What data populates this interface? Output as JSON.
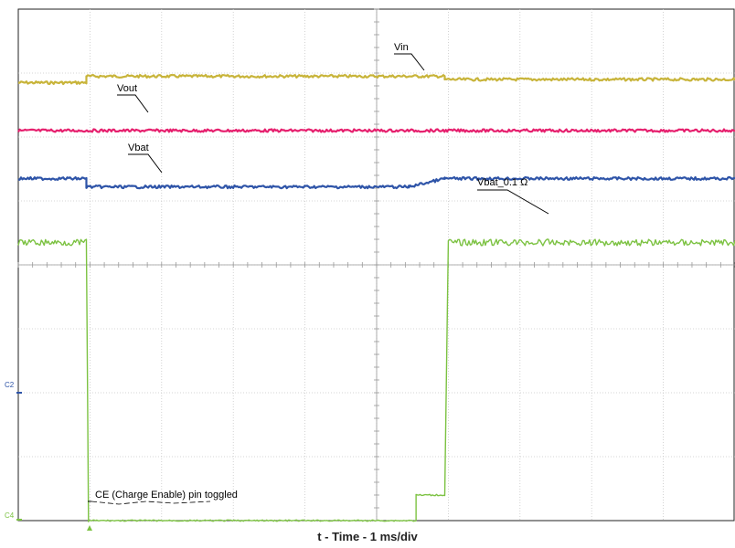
{
  "chart_data": {
    "type": "line",
    "title": "",
    "xlabel": "t - Time - 1 ms/div",
    "ylabel": "",
    "x_unit": "ms",
    "xlim": [
      0,
      10
    ],
    "divisions": {
      "horizontal": 10,
      "vertical": 8
    },
    "grid": true,
    "legend": "none",
    "series": [
      {
        "name": "Vin",
        "color": "#c8b43a",
        "points": [
          [
            0,
            6.85
          ],
          [
            0.95,
            6.85
          ],
          [
            0.95,
            6.95
          ],
          [
            5.95,
            6.95
          ],
          [
            5.95,
            6.9
          ],
          [
            10,
            6.9
          ]
        ]
      },
      {
        "name": "Vout",
        "color": "#e6206e",
        "points": [
          [
            0,
            6.1
          ],
          [
            10,
            6.1
          ]
        ]
      },
      {
        "name": "Vbat",
        "color": "#2e54a8",
        "points": [
          [
            0,
            5.35
          ],
          [
            0.95,
            5.35
          ],
          [
            0.95,
            5.22
          ],
          [
            5.45,
            5.22
          ],
          [
            5.95,
            5.35
          ],
          [
            10,
            5.35
          ]
        ]
      },
      {
        "name": "Vbat_0.1 Ω",
        "color": "#7cc242",
        "points": [
          [
            0,
            4.35
          ],
          [
            0.95,
            4.35
          ],
          [
            0.98,
            0.0
          ],
          [
            5.55,
            0.0
          ],
          [
            5.55,
            0.4
          ],
          [
            5.95,
            0.4
          ],
          [
            6.0,
            4.35
          ],
          [
            10,
            4.35
          ]
        ]
      }
    ],
    "channel_markers": [
      "C2",
      "C4"
    ],
    "annotations": [
      "Vin",
      "Vout",
      "Vbat",
      "Vbat_0.1 Ω",
      "CE (Charge Enable) pin toggled"
    ]
  }
}
